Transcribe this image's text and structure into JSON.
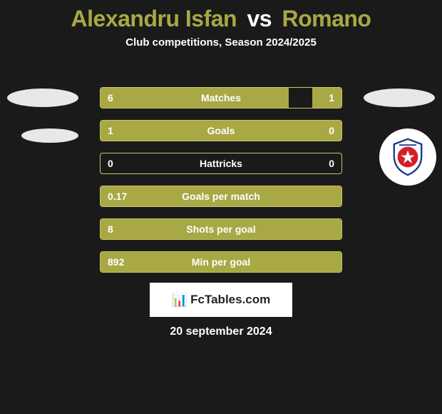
{
  "title": {
    "p1": "Alexandru Isfan",
    "vs": "vs",
    "p2": "Romano"
  },
  "subtitle": "Club competitions, Season 2024/2025",
  "colors": {
    "bar_fill": "#a8a845",
    "bar_border": "#c5c563",
    "bg": "#1a1a1a",
    "text": "#ffffff",
    "ellipse": "#e8e8e8"
  },
  "stats": [
    {
      "label": "Matches",
      "left_val": "6",
      "right_val": "1",
      "left_pct": 78,
      "right_pct": 12
    },
    {
      "label": "Goals",
      "left_val": "1",
      "right_val": "0",
      "left_pct": 100,
      "right_pct": 0
    },
    {
      "label": "Hattricks",
      "left_val": "0",
      "right_val": "0",
      "left_pct": 0,
      "right_pct": 0
    },
    {
      "label": "Goals per match",
      "left_val": "0.17",
      "right_val": "",
      "left_pct": 100,
      "right_pct": 0
    },
    {
      "label": "Shots per goal",
      "left_val": "8",
      "right_val": "",
      "left_pct": 100,
      "right_pct": 0
    },
    {
      "label": "Min per goal",
      "left_val": "892",
      "right_val": "",
      "left_pct": 100,
      "right_pct": 0
    }
  ],
  "badge": {
    "text": "FcTables.com"
  },
  "date": "20 september 2024",
  "club_logo": {
    "primary": "#d12028",
    "secondary": "#1b3f8b",
    "stroke": "#ffffff"
  }
}
